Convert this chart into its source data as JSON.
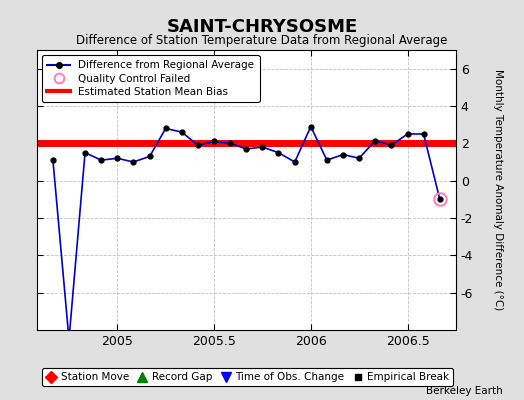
{
  "title": "SAINT-CHRYSOSME",
  "subtitle": "Difference of Station Temperature Data from Regional Average",
  "ylabel": "Monthly Temperature Anomaly Difference (°C)",
  "credit": "Berkeley Earth",
  "xlim": [
    2004.583,
    2006.75
  ],
  "ylim": [
    -8,
    7
  ],
  "yticks": [
    -6,
    -4,
    -2,
    0,
    2,
    4,
    6
  ],
  "xticks": [
    2005,
    2005.5,
    2006,
    2006.5
  ],
  "bias_value": 2.0,
  "line_color": "#0000cc",
  "bias_color": "#ff0000",
  "qc_fail_color": "#ff80c0",
  "data_x": [
    2004.667,
    2004.75,
    2004.833,
    2004.917,
    2005.0,
    2005.083,
    2005.167,
    2005.25,
    2005.333,
    2005.417,
    2005.5,
    2005.583,
    2005.667,
    2005.75,
    2005.833,
    2005.917,
    2006.0,
    2006.083,
    2006.167,
    2006.25,
    2006.333,
    2006.417,
    2006.5,
    2006.583,
    2006.667
  ],
  "data_y": [
    1.1,
    -8.5,
    1.5,
    1.1,
    1.2,
    1.0,
    1.3,
    2.8,
    2.6,
    1.9,
    2.1,
    2.0,
    1.7,
    1.8,
    1.5,
    1.0,
    2.9,
    1.1,
    1.4,
    1.2,
    2.15,
    1.9,
    2.5,
    2.5,
    -1.0
  ],
  "qc_fail_x": [
    2006.667
  ],
  "qc_fail_y": [
    -1.0
  ],
  "bg_color": "#e0e0e0",
  "plot_bg_color": "#ffffff",
  "grid_color": "#c0c0c0"
}
